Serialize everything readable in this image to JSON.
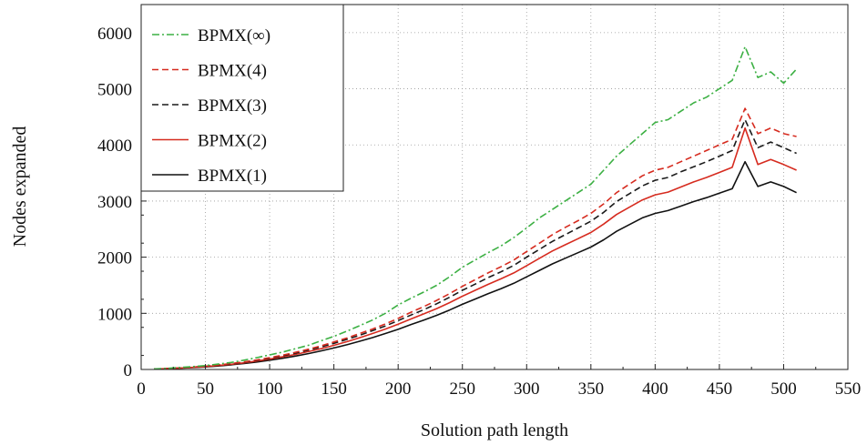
{
  "chart_data": {
    "type": "line",
    "title": "",
    "xlabel": "Solution path length",
    "ylabel": "Nodes expanded",
    "xlim": [
      0,
      550
    ],
    "ylim": [
      0,
      6500
    ],
    "xticks": [
      0,
      50,
      100,
      150,
      200,
      250,
      300,
      350,
      400,
      450,
      500,
      550
    ],
    "yticks": [
      0,
      1000,
      2000,
      3000,
      4000,
      5000,
      6000
    ],
    "grid": true,
    "legend_position": "top-left",
    "x": [
      10,
      20,
      30,
      40,
      50,
      60,
      70,
      80,
      90,
      100,
      110,
      120,
      130,
      140,
      150,
      160,
      170,
      180,
      190,
      200,
      210,
      220,
      230,
      240,
      250,
      260,
      270,
      280,
      290,
      300,
      310,
      320,
      330,
      340,
      350,
      360,
      370,
      380,
      390,
      400,
      410,
      420,
      430,
      440,
      450,
      460,
      470,
      480,
      490,
      500,
      510
    ],
    "series": [
      {
        "name": "BPMX(∞)",
        "color": "#3cb043",
        "dash": "dashdot",
        "values": [
          10,
          20,
          35,
          50,
          70,
          95,
          125,
          165,
          210,
          260,
          310,
          370,
          430,
          510,
          590,
          680,
          780,
          880,
          1000,
          1150,
          1270,
          1380,
          1500,
          1650,
          1820,
          1950,
          2080,
          2200,
          2350,
          2520,
          2700,
          2850,
          3000,
          3150,
          3300,
          3550,
          3800,
          4000,
          4200,
          4400,
          4450,
          4600,
          4750,
          4850,
          5000,
          5150,
          5750,
          5200,
          5300,
          5100,
          5350
        ]
      },
      {
        "name": "BPMX(4)",
        "color": "#d62b1f",
        "dash": "dashed",
        "values": [
          8,
          16,
          28,
          42,
          58,
          80,
          105,
          135,
          170,
          210,
          255,
          305,
          360,
          420,
          490,
          560,
          640,
          720,
          810,
          910,
          1020,
          1120,
          1230,
          1350,
          1480,
          1600,
          1720,
          1830,
          1950,
          2100,
          2250,
          2400,
          2530,
          2650,
          2780,
          2950,
          3150,
          3300,
          3450,
          3550,
          3600,
          3700,
          3800,
          3900,
          4000,
          4100,
          4650,
          4200,
          4300,
          4200,
          4150
        ]
      },
      {
        "name": "BPMX(3)",
        "color": "#1a1a1a",
        "dash": "dashed",
        "values": [
          8,
          15,
          27,
          40,
          56,
          76,
          100,
          128,
          162,
          200,
          243,
          290,
          343,
          400,
          465,
          535,
          610,
          690,
          775,
          870,
          970,
          1065,
          1170,
          1285,
          1410,
          1520,
          1635,
          1740,
          1855,
          2000,
          2140,
          2280,
          2400,
          2520,
          2640,
          2800,
          2990,
          3130,
          3270,
          3370,
          3420,
          3520,
          3610,
          3700,
          3800,
          3900,
          4450,
          3950,
          4050,
          3950,
          3850
        ]
      },
      {
        "name": "BPMX(2)",
        "color": "#d62b1f",
        "dash": "solid",
        "values": [
          7,
          14,
          25,
          37,
          52,
          70,
          92,
          118,
          150,
          185,
          225,
          268,
          318,
          370,
          430,
          495,
          565,
          640,
          720,
          805,
          900,
          990,
          1085,
          1190,
          1305,
          1410,
          1515,
          1615,
          1720,
          1850,
          1980,
          2110,
          2220,
          2330,
          2440,
          2590,
          2760,
          2890,
          3020,
          3110,
          3160,
          3250,
          3340,
          3420,
          3510,
          3600,
          4300,
          3650,
          3740,
          3650,
          3550
        ]
      },
      {
        "name": "BPMX(1)",
        "color": "#111111",
        "dash": "solid",
        "values": [
          6,
          12,
          22,
          33,
          46,
          62,
          82,
          105,
          133,
          165,
          200,
          238,
          282,
          330,
          383,
          440,
          502,
          568,
          640,
          715,
          800,
          880,
          965,
          1058,
          1160,
          1255,
          1350,
          1440,
          1535,
          1650,
          1765,
          1880,
          1980,
          2080,
          2180,
          2310,
          2460,
          2580,
          2700,
          2780,
          2830,
          2910,
          2990,
          3060,
          3140,
          3220,
          3700,
          3260,
          3340,
          3260,
          3150
        ]
      }
    ]
  }
}
